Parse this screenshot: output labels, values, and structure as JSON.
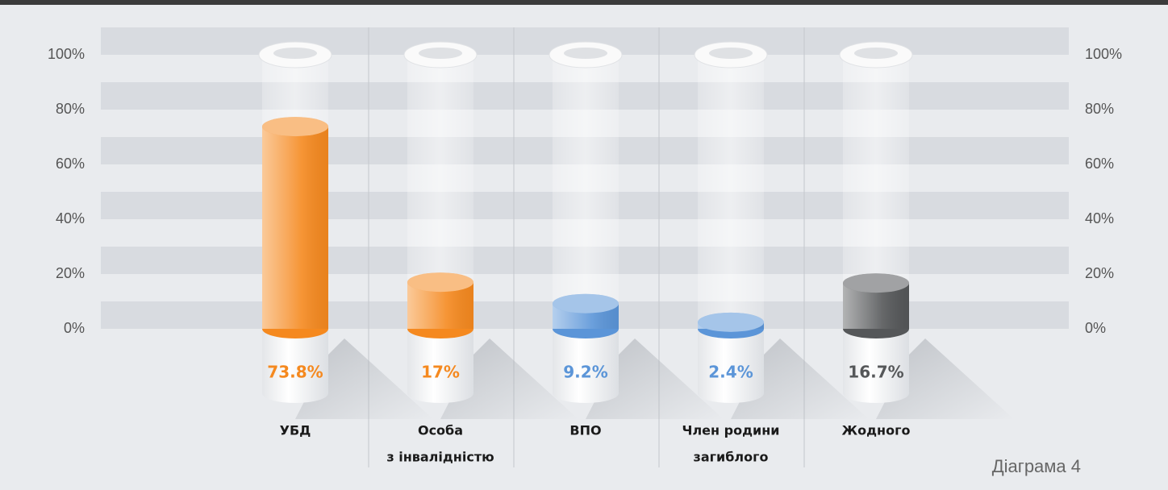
{
  "chart_data": {
    "type": "bar",
    "categories": [
      [
        "УБД"
      ],
      [
        "Особа",
        "з інвалідністю"
      ],
      [
        "ВПО"
      ],
      [
        "Член родини",
        "загиблого"
      ],
      [
        "Жодного"
      ]
    ],
    "values": [
      73.8,
      17,
      9.2,
      2.4,
      16.7
    ],
    "value_labels": [
      "73.8%",
      "17%",
      "9.2%",
      "2.4%",
      "16.7%"
    ],
    "colors": [
      "#f5891f",
      "#f5891f",
      "#5b95d8",
      "#5b95d8",
      "#555759"
    ],
    "ylim": [
      0,
      100
    ],
    "yticks": [
      {
        "value": 0,
        "label": "0%"
      },
      {
        "value": 20,
        "label": "20%"
      },
      {
        "value": 40,
        "label": "40%"
      },
      {
        "value": 60,
        "label": "60%"
      },
      {
        "value": 80,
        "label": "80%"
      },
      {
        "value": 100,
        "label": "100%"
      }
    ],
    "caption": "Діаграма 4"
  }
}
